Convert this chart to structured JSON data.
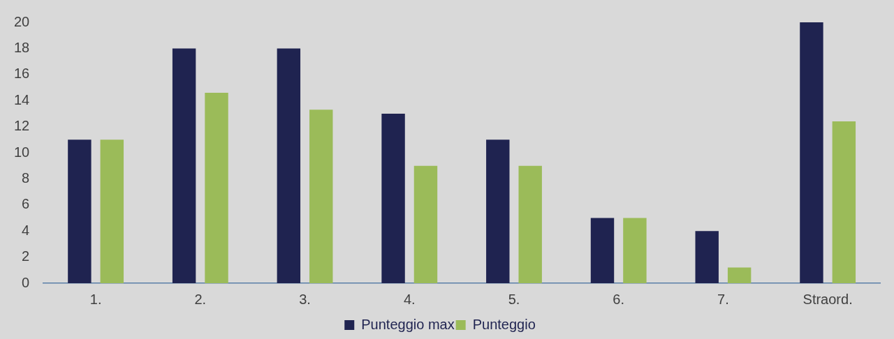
{
  "chart_data": {
    "type": "bar",
    "categories": [
      "1.",
      "2.",
      "3.",
      "4.",
      "5.",
      "6.",
      "7.",
      "Straord."
    ],
    "series": [
      {
        "name": "Punteggio max",
        "color": "#1f2350",
        "values": [
          11,
          18,
          18,
          13,
          11,
          5,
          4,
          20
        ]
      },
      {
        "name": "Punteggio",
        "color": "#9bbb59",
        "values": [
          11,
          14.6,
          13.3,
          9,
          9,
          5,
          1.2,
          12.4
        ]
      }
    ],
    "ylim": [
      0,
      20
    ],
    "yticks": [
      0,
      2,
      4,
      6,
      8,
      10,
      12,
      14,
      16,
      18,
      20
    ],
    "grid": false,
    "legend": "bottom"
  }
}
